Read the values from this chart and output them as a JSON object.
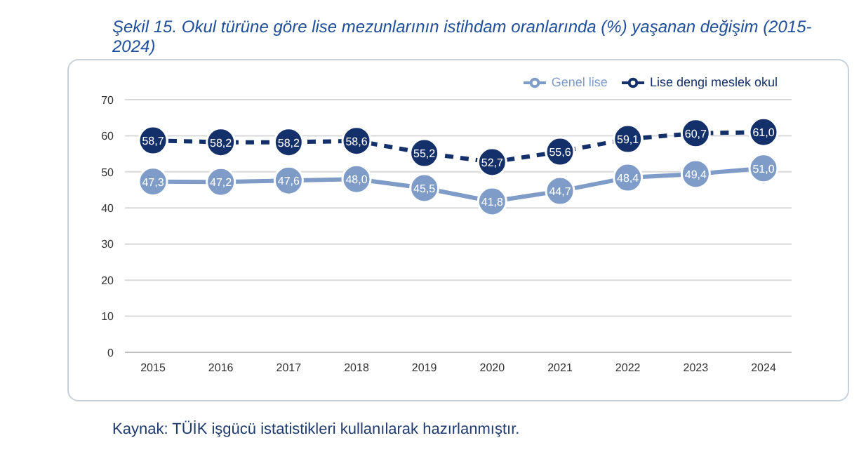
{
  "chart_data": {
    "type": "line",
    "title": "Şekil 15. Okul türüne göre lise mezunlarının istihdam oranlarında (%) yaşanan değişim (2015-2024)",
    "annotations": [
      "Kaynak: TÜİK işgücü istatistikleri kullanılarak hazırlanmıştır."
    ],
    "categories": [
      "2015",
      "2016",
      "2017",
      "2018",
      "2019",
      "2020",
      "2021",
      "2022",
      "2023",
      "2024"
    ],
    "series": [
      {
        "name": "Genel lise",
        "color": "#7f9cc9",
        "line_style": "solid",
        "values": [
          47.3,
          47.2,
          47.6,
          48.0,
          45.5,
          41.8,
          44.7,
          48.4,
          49.4,
          51.0
        ],
        "value_labels": [
          "47,3",
          "47,2",
          "47,6",
          "48,0",
          "45,5",
          "41,8",
          "44,7",
          "48,4",
          "49,4",
          "51,0"
        ]
      },
      {
        "name": "Lise dengi meslek okul",
        "color": "#14306a",
        "line_style": "dashed",
        "values": [
          58.7,
          58.2,
          58.2,
          58.6,
          55.2,
          52.7,
          55.6,
          59.1,
          60.7,
          61.0
        ],
        "value_labels": [
          "58,7",
          "58,2",
          "58,2",
          "58,6",
          "55,2",
          "52,7",
          "55,6",
          "59,1",
          "60,7",
          "61,0"
        ]
      }
    ],
    "ylim": [
      0,
      70
    ],
    "yticks": [
      0,
      10,
      20,
      30,
      40,
      50,
      60,
      70
    ],
    "grid": "y",
    "legend": "top right",
    "marker": "circle"
  }
}
